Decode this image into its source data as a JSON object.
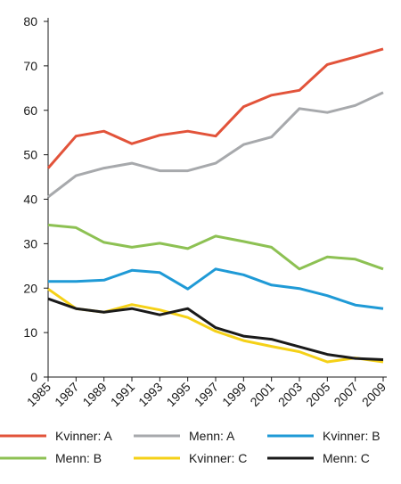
{
  "chart_data": {
    "type": "line",
    "x": [
      1985,
      1987,
      1989,
      1991,
      1993,
      1995,
      1997,
      1999,
      2001,
      2003,
      2005,
      2007,
      2009
    ],
    "xticks": [
      "1985",
      "1987",
      "1989",
      "1991",
      "1993",
      "1995",
      "1997",
      "1999",
      "2001",
      "2003",
      "2005",
      "2007",
      "2009"
    ],
    "yticks": [
      "0",
      "10",
      "20",
      "30",
      "40",
      "50",
      "60",
      "70",
      "80"
    ],
    "ylim": [
      0,
      80
    ],
    "grid": false,
    "legend_position": "bottom",
    "title": "",
    "xlabel": "",
    "ylabel": "",
    "series": [
      {
        "name": "Kvinner: A",
        "color": "#e2533a",
        "values": [
          47,
          54.2,
          55.3,
          52.5,
          54.4,
          55.3,
          54.2,
          60.8,
          63.4,
          64.5,
          70.3,
          72,
          73.8
        ]
      },
      {
        "name": "Menn: A",
        "color": "#a7a9ac",
        "values": [
          40.5,
          45.3,
          47,
          48.1,
          46.4,
          46.4,
          48.1,
          52.3,
          54,
          60.4,
          59.5,
          61.1,
          64
        ]
      },
      {
        "name": "Kvinner: B",
        "color": "#1f9ad6",
        "values": [
          21.5,
          21.5,
          21.8,
          24,
          23.5,
          19.8,
          24.3,
          23,
          20.7,
          19.9,
          18.3,
          16.2,
          15.4
        ]
      },
      {
        "name": "Menn: B",
        "color": "#8dc153",
        "values": [
          34.2,
          33.6,
          30.3,
          29.2,
          30.1,
          28.9,
          31.7,
          30.5,
          29.2,
          24.3,
          27,
          26.5,
          24.3
        ]
      },
      {
        "name": "Kvinner: C",
        "color": "#f5d117",
        "values": [
          19.8,
          15.4,
          14.6,
          16.3,
          15.1,
          13.4,
          10.3,
          8.2,
          6.9,
          5.7,
          3.4,
          4.3,
          3.4
        ]
      },
      {
        "name": "Menn: C",
        "color": "#1a1a1a",
        "values": [
          17.6,
          15.4,
          14.6,
          15.4,
          14,
          15.4,
          11.1,
          9.2,
          8.5,
          6.8,
          5.1,
          4.2,
          3.9
        ]
      }
    ]
  }
}
